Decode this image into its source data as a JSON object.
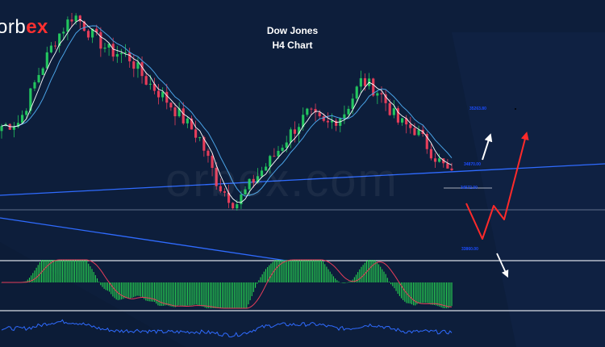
{
  "header": {
    "logo_prefix": "orb",
    "logo_suffix": "ex",
    "title_line1": "Dow Jones",
    "title_line2": "H4 Chart",
    "watermark": "orbex.com"
  },
  "levels": [
    {
      "label": "35263.80",
      "y": 35263.8
    },
    {
      "label": "34870.00",
      "y": 34870.0
    },
    {
      "label": "34572.00",
      "y": 34572.0
    },
    {
      "label": "33860.00",
      "y": 33860.0
    }
  ],
  "colors": {
    "background": "#0d1e3b",
    "candle_up": "#22c55e",
    "candle_down": "#e53d5a",
    "ma_fast": "#ffffff",
    "ma_slow": "#4aa3e6",
    "trendline": "#2f6bff",
    "histogram": "#27d651",
    "signal": "#e53d5a",
    "oscillator": "#2f6bff",
    "scenario_up": "#ffffff",
    "scenario_alt": "#ff2a2a",
    "scenario_down": "#ffffff"
  },
  "chart_data": {
    "type": "candlestick",
    "title": "Dow Jones H4 Chart",
    "candle_count": 110,
    "price_range": [
      33600,
      36400
    ],
    "close_path": [
      35000,
      35050,
      35600,
      36050,
      36350,
      36100,
      35900,
      35850,
      35550,
      35350,
      35100,
      34850,
      34300,
      34050,
      34350,
      34600,
      34900,
      35150,
      35000,
      35150,
      35550,
      35400,
      35050,
      34950,
      34650,
      34400
    ],
    "price_levels": [
      35263.8,
      34870.0,
      34572.0,
      33860.0
    ],
    "grid": false,
    "legend": "none"
  }
}
